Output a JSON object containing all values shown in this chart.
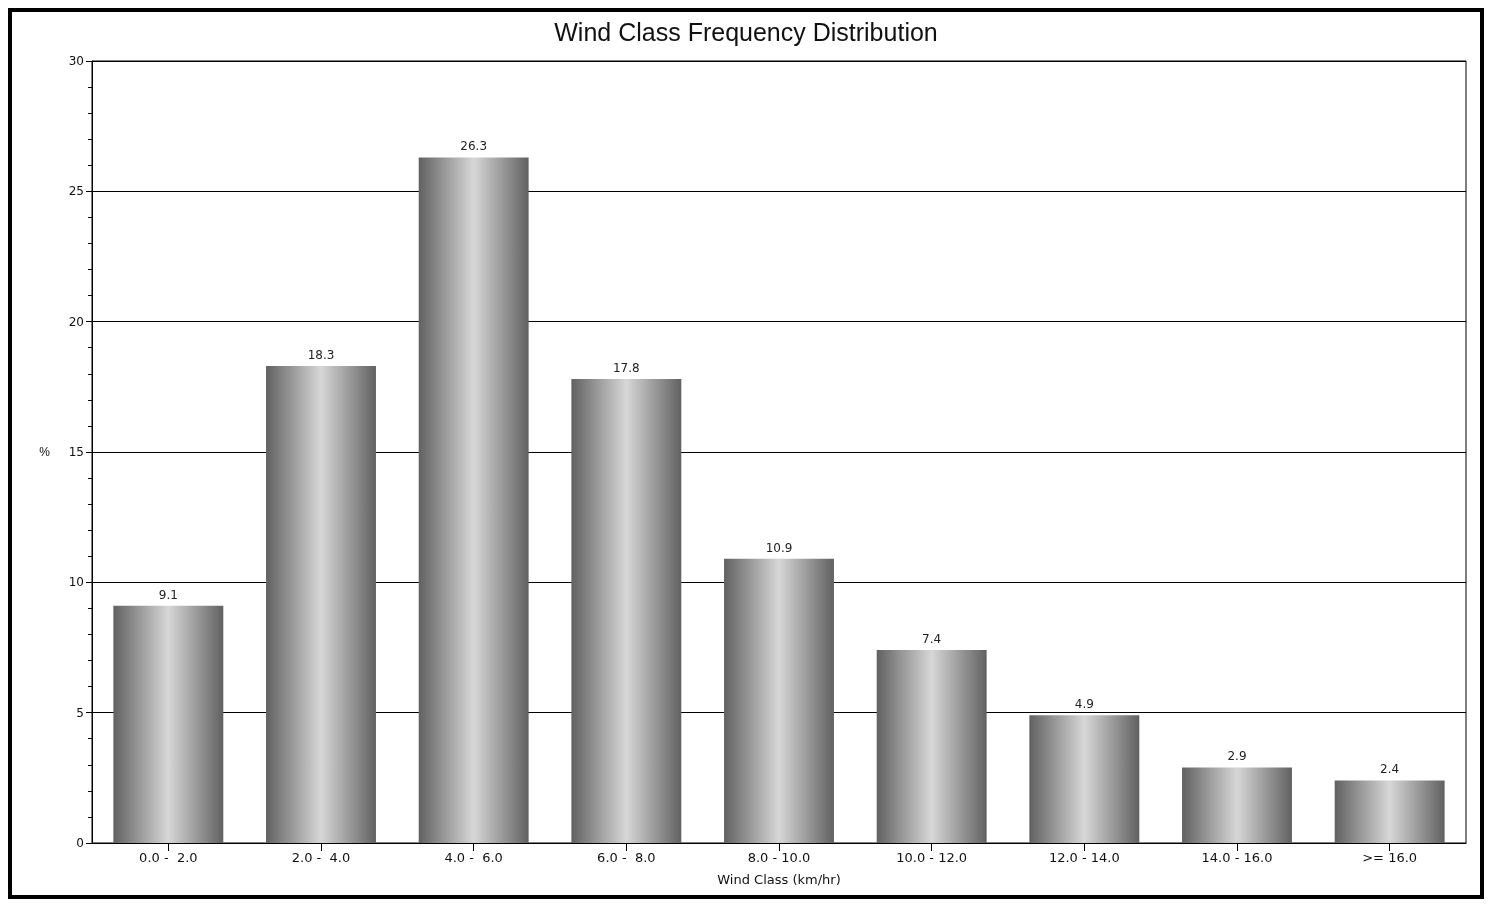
{
  "chart_data": {
    "type": "bar",
    "title": "Wind Class Frequency Distribution",
    "xlabel": "Wind Class (km/hr)",
    "ylabel": "%",
    "categories": [
      "0.0 -  2.0",
      "2.0 -  4.0",
      "4.0 -  6.0",
      "6.0 -  8.0",
      "8.0 - 10.0",
      "10.0 - 12.0",
      "12.0 - 14.0",
      "14.0 - 16.0",
      ">= 16.0"
    ],
    "values": [
      9.1,
      18.3,
      26.3,
      17.8,
      10.9,
      7.4,
      4.9,
      2.9,
      2.4
    ],
    "color": "#b0b0b0",
    "data_labels": true,
    "ylim": [
      0,
      30
    ],
    "yticks": [
      0,
      5,
      10,
      15,
      20,
      25,
      30
    ],
    "grid": "y"
  }
}
